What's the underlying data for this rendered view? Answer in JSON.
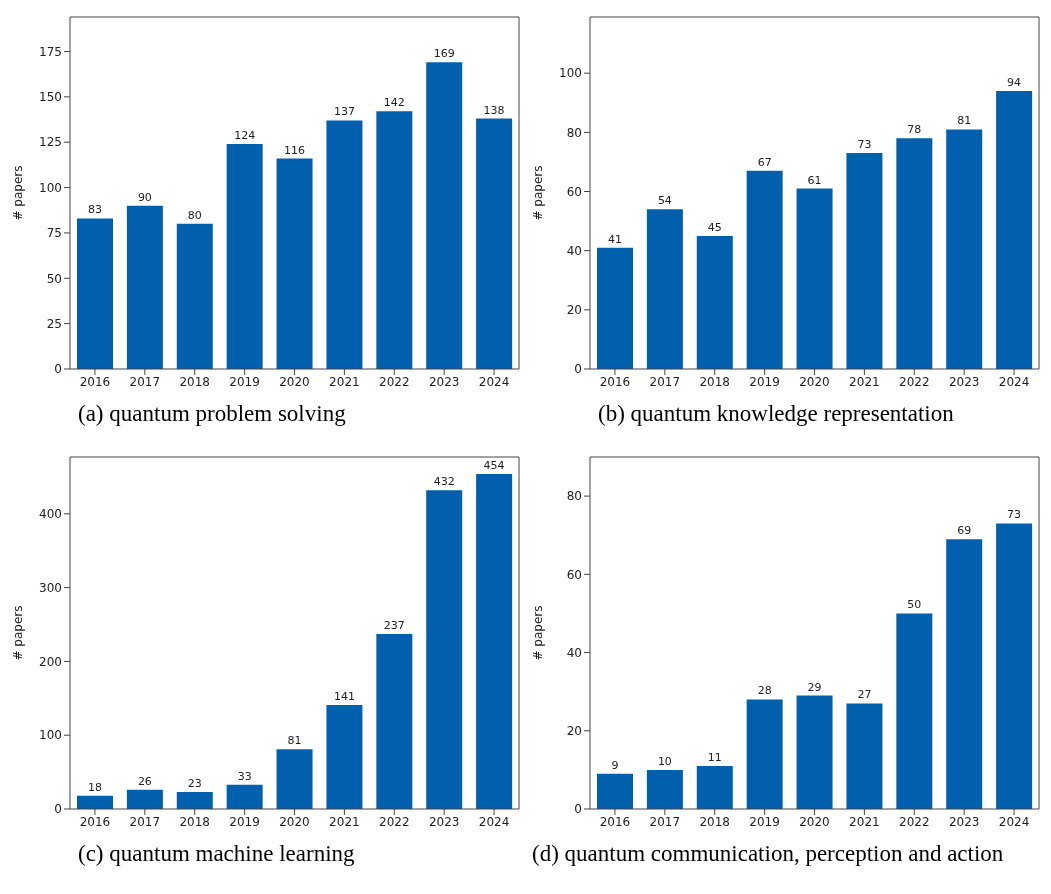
{
  "chart_data": [
    {
      "type": "bar",
      "title": "(a) quantum problem solving",
      "ylabel": "# papers",
      "categories": [
        "2016",
        "2017",
        "2018",
        "2019",
        "2020",
        "2021",
        "2022",
        "2023",
        "2024"
      ],
      "values": [
        83,
        90,
        80,
        124,
        116,
        137,
        142,
        169,
        138
      ],
      "color": "#0060ad",
      "ylim": [
        0,
        194
      ],
      "yticks": [
        0,
        25,
        50,
        75,
        100,
        125,
        150,
        175
      ],
      "data_labels": true,
      "grid": false,
      "legend": false
    },
    {
      "type": "bar",
      "title": "(b) quantum knowledge representation",
      "ylabel": "# papers",
      "categories": [
        "2016",
        "2017",
        "2018",
        "2019",
        "2020",
        "2021",
        "2022",
        "2023",
        "2024"
      ],
      "values": [
        41,
        54,
        45,
        67,
        61,
        73,
        78,
        81,
        94
      ],
      "color": "#0060ad",
      "ylim": [
        0,
        119
      ],
      "yticks": [
        0,
        20,
        40,
        60,
        80,
        100
      ],
      "data_labels": true,
      "grid": false,
      "legend": false
    },
    {
      "type": "bar",
      "title": "(c) quantum machine learning",
      "ylabel": "# papers",
      "categories": [
        "2016",
        "2017",
        "2018",
        "2019",
        "2020",
        "2021",
        "2022",
        "2023",
        "2024"
      ],
      "values": [
        18,
        26,
        23,
        33,
        81,
        141,
        237,
        432,
        454
      ],
      "color": "#0060ad",
      "ylim": [
        0,
        477
      ],
      "yticks": [
        0,
        100,
        200,
        300,
        400
      ],
      "data_labels": true,
      "grid": false,
      "legend": false
    },
    {
      "type": "bar",
      "title": "(d) quantum communication, perception and action",
      "ylabel": "# papers",
      "categories": [
        "2016",
        "2017",
        "2018",
        "2019",
        "2020",
        "2021",
        "2022",
        "2023",
        "2024"
      ],
      "values": [
        9,
        10,
        11,
        28,
        29,
        27,
        50,
        69,
        73
      ],
      "color": "#0060ad",
      "ylim": [
        0,
        90
      ],
      "yticks": [
        0,
        20,
        40,
        60,
        80
      ],
      "data_labels": true,
      "grid": false,
      "legend": false
    }
  ]
}
